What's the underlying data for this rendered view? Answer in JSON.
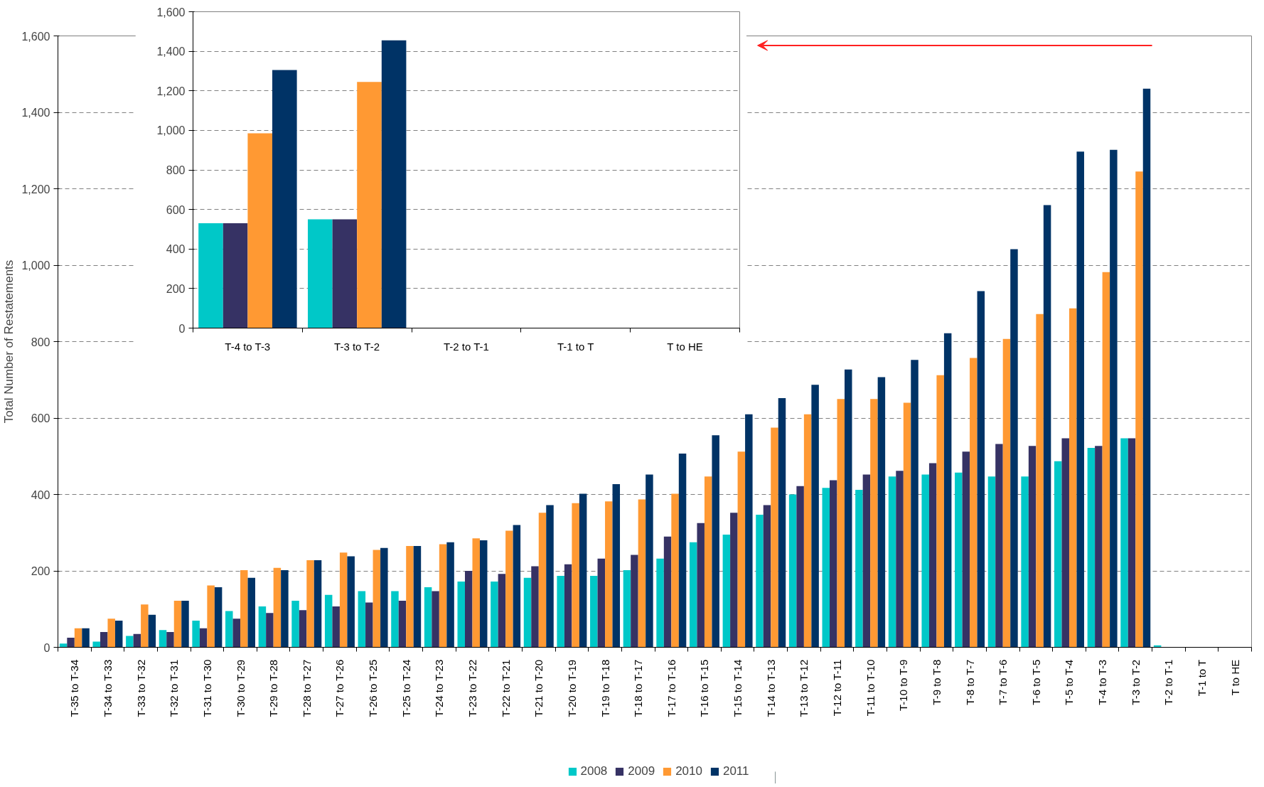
{
  "chart_data": [
    {
      "type": "bar",
      "ylabel": "Total Number of Restatements",
      "categories": [
        "T-35 to T-34",
        "T-34 to T-33",
        "T-33 to T-32",
        "T-32 to T-31",
        "T-31 to T-30",
        "T-30 to T-29",
        "T-29 to T-28",
        "T-28 to T-27",
        "T-27 to T-26",
        "T-26 to T-25",
        "T-25 to T-24",
        "T-24 to T-23",
        "T-23 to T-22",
        "T-22 to T-21",
        "T-21 to T-20",
        "T-20 to T-19",
        "T-19 to T-18",
        "T-18 to T-17",
        "T-17 to T-16",
        "T-16 to T-15",
        "T-15 to T-14",
        "T-14 to T-13",
        "T-13 to T-12",
        "T-12 to T-11",
        "T-11 to T-10",
        "T-10 to T-9",
        "T-9 to T-8",
        "T-8 to T-7",
        "T-7 to T-6",
        "T-6 to T-5",
        "T-5 to T-4",
        "T-4 to T-3",
        "T-3 to T-2",
        "T-2 to T-1",
        "T-1 to T",
        "T to HE"
      ],
      "series": [
        {
          "name": "2008",
          "color": "#00c8c8",
          "values": [
            10,
            15,
            30,
            45,
            70,
            95,
            107,
            122,
            137,
            147,
            147,
            157,
            172,
            172,
            182,
            187,
            187,
            202,
            232,
            275,
            295,
            347,
            400,
            417,
            412,
            447,
            452,
            457,
            447,
            447,
            487,
            522,
            547,
            5,
            0,
            0
          ]
        },
        {
          "name": "2009",
          "color": "#363264",
          "values": [
            25,
            40,
            35,
            40,
            50,
            75,
            90,
            97,
            107,
            117,
            122,
            147,
            200,
            192,
            212,
            217,
            232,
            242,
            290,
            325,
            352,
            372,
            422,
            437,
            452,
            462,
            482,
            512,
            532,
            527,
            547,
            527,
            547,
            0,
            0,
            0
          ]
        },
        {
          "name": "2010",
          "color": "#ff9933",
          "values": [
            50,
            75,
            112,
            122,
            162,
            202,
            208,
            228,
            248,
            255,
            265,
            270,
            285,
            305,
            352,
            377,
            382,
            387,
            402,
            447,
            512,
            575,
            610,
            650,
            650,
            640,
            712,
            757,
            807,
            872,
            887,
            982,
            1245,
            0,
            0,
            0
          ]
        },
        {
          "name": "2011",
          "color": "#003366",
          "values": [
            50,
            70,
            85,
            122,
            157,
            182,
            202,
            228,
            238,
            260,
            265,
            275,
            280,
            320,
            372,
            402,
            427,
            452,
            507,
            555,
            610,
            652,
            687,
            727,
            707,
            752,
            822,
            932,
            1042,
            1157,
            1297,
            1302,
            1462,
            0,
            0,
            0
          ]
        }
      ],
      "ylim": [
        0,
        1600
      ],
      "yticks": [
        0,
        200,
        400,
        600,
        800,
        {
          "value": 1000,
          "label": "1,000"
        },
        {
          "value": 1200,
          "label": "1,200"
        },
        {
          "value": 1400,
          "label": "1,400"
        },
        {
          "value": 1600,
          "label": "1,600"
        }
      ],
      "grid": "y",
      "legend": "bottom"
    },
    {
      "type": "bar",
      "categories": [
        "T-4 to T-3",
        "T-3 to T-2",
        "T-2 to T-1",
        "T-1 to T",
        "T to HE"
      ],
      "series": [
        {
          "color": "#00c8c8",
          "values": [
            530,
            550,
            null,
            null,
            null
          ]
        },
        {
          "color": "#363264",
          "values": [
            530,
            550,
            null,
            null,
            null
          ]
        },
        {
          "color": "#ff9933",
          "values": [
            985,
            1245,
            null,
            null,
            null
          ]
        },
        {
          "color": "#003366",
          "values": [
            1305,
            1455,
            null,
            null,
            null
          ]
        }
      ],
      "ylim": [
        0,
        1600
      ],
      "yticks": [
        0,
        200,
        400,
        600,
        800,
        {
          "value": 1000,
          "label": "1,000"
        },
        {
          "value": 1200,
          "label": "1,200"
        },
        {
          "value": 1400,
          "label": "1,400"
        },
        {
          "value": 1600,
          "label": "1,600"
        }
      ],
      "grid": "y"
    }
  ]
}
